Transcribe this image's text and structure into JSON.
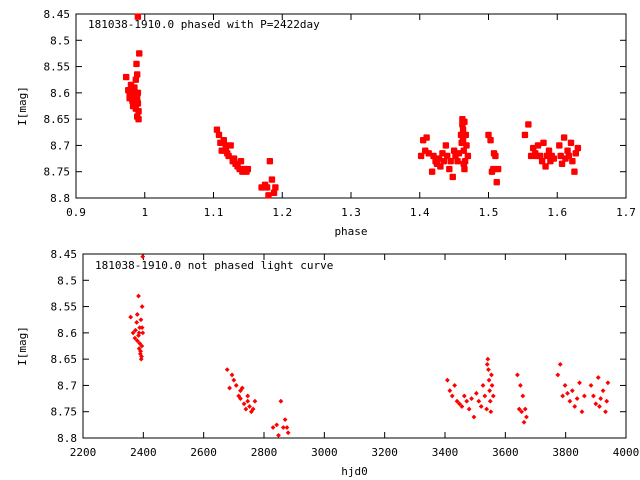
{
  "chart_data": [
    {
      "type": "scatter",
      "title": "181038-1910.0 phased with P=2422day",
      "xlabel": "phase",
      "ylabel": "I[mag]",
      "xlim": [
        0.9,
        1.7
      ],
      "ylim": [
        8.45,
        8.8
      ],
      "y_inverted": true,
      "x_ticks": [
        "0.9",
        "1",
        "1.1",
        "1.2",
        "1.3",
        "1.4",
        "1.5",
        "1.6",
        "1.7"
      ],
      "y_ticks": [
        "8.45",
        "8.5",
        "8.55",
        "8.6",
        "8.65",
        "8.7",
        "8.75",
        "8.8"
      ],
      "marker": "filled-square-large",
      "color": "#ff0000",
      "grid": false,
      "series": [
        {
          "x": [
            0.99,
            0.973,
            0.976,
            0.978,
            0.978,
            0.98,
            0.98,
            0.982,
            0.983,
            0.984,
            0.985,
            0.986,
            0.987,
            0.987,
            0.988,
            0.989,
            0.989,
            0.99,
            0.99,
            0.991,
            0.991,
            0.992,
            0.985,
            0.982,
            0.989,
            1.105,
            1.108,
            1.11,
            1.112,
            1.115,
            1.118,
            1.12,
            1.122,
            1.125,
            1.128,
            1.13,
            1.132,
            1.135,
            1.138,
            1.14,
            1.142,
            1.145,
            1.148,
            1.15,
            1.118,
            1.17,
            1.175,
            1.178,
            1.18,
            1.182,
            1.185,
            1.19,
            1.188,
            1.402,
            1.405,
            1.408,
            1.41,
            1.413,
            1.418,
            1.42,
            1.423,
            1.425,
            1.428,
            1.43,
            1.433,
            1.435,
            1.438,
            1.44,
            1.443,
            1.445,
            1.448,
            1.45,
            1.452,
            1.455,
            1.457,
            1.46,
            1.461,
            1.462,
            1.462,
            1.463,
            1.463,
            1.464,
            1.464,
            1.465,
            1.465,
            1.466,
            1.467,
            1.468,
            1.47,
            1.5,
            1.503,
            1.505,
            1.507,
            1.508,
            1.51,
            1.512,
            1.514,
            1.553,
            1.558,
            1.562,
            1.565,
            1.568,
            1.57,
            1.572,
            1.575,
            1.578,
            1.58,
            1.583,
            1.585,
            1.588,
            1.59,
            1.592,
            1.595,
            1.603,
            1.605,
            1.607,
            1.61,
            1.612,
            1.615,
            1.617,
            1.62,
            1.622,
            1.625,
            1.627,
            1.63
          ],
          "y": [
            8.455,
            8.57,
            8.595,
            8.61,
            8.6,
            8.585,
            8.6,
            8.615,
            8.625,
            8.595,
            8.605,
            8.62,
            8.63,
            8.575,
            8.545,
            8.565,
            8.645,
            8.62,
            8.6,
            8.635,
            8.65,
            8.525,
            8.59,
            8.605,
            8.61,
            8.67,
            8.68,
            8.695,
            8.71,
            8.69,
            8.7,
            8.715,
            8.72,
            8.7,
            8.73,
            8.725,
            8.735,
            8.74,
            8.745,
            8.73,
            8.75,
            8.745,
            8.75,
            8.745,
            8.705,
            8.78,
            8.775,
            8.78,
            8.795,
            8.73,
            8.765,
            8.78,
            8.79,
            8.72,
            8.69,
            8.71,
            8.685,
            8.715,
            8.75,
            8.72,
            8.73,
            8.735,
            8.725,
            8.74,
            8.715,
            8.73,
            8.7,
            8.72,
            8.745,
            8.73,
            8.76,
            8.71,
            8.72,
            8.73,
            8.715,
            8.68,
            8.695,
            8.65,
            8.66,
            8.67,
            8.69,
            8.71,
            8.735,
            8.655,
            8.745,
            8.73,
            8.68,
            8.7,
            8.72,
            8.68,
            8.69,
            8.75,
            8.745,
            8.715,
            8.72,
            8.77,
            8.745,
            8.68,
            8.66,
            8.72,
            8.705,
            8.715,
            8.72,
            8.7,
            8.72,
            8.73,
            8.695,
            8.74,
            8.72,
            8.71,
            8.73,
            8.72,
            8.725,
            8.7,
            8.72,
            8.735,
            8.685,
            8.725,
            8.71,
            8.72,
            8.695,
            8.73,
            8.75,
            8.715,
            8.705
          ]
        }
      ]
    },
    {
      "type": "scatter",
      "title": "181038-1910.0 not phased light curve",
      "xlabel": "hjd0",
      "ylabel": "I[mag]",
      "xlim": [
        2200,
        4000
      ],
      "ylim": [
        8.45,
        8.8
      ],
      "y_inverted": true,
      "x_ticks": [
        "2200",
        "2400",
        "2600",
        "2800",
        "3000",
        "3200",
        "3400",
        "3600",
        "3800",
        "4000"
      ],
      "y_ticks": [
        "8.45",
        "8.5",
        "8.55",
        "8.6",
        "8.65",
        "8.7",
        "8.75",
        "8.8"
      ],
      "marker": "diamond-small",
      "color": "#ff0000",
      "grid": false,
      "series": [
        {
          "x": [
            2398,
            2358,
            2366,
            2372,
            2374,
            2378,
            2380,
            2384,
            2386,
            2388,
            2391,
            2393,
            2396,
            2396,
            2380,
            2390,
            2395,
            2384,
            2392,
            2388,
            2398,
            2386,
            2394,
            2678,
            2686,
            2694,
            2700,
            2708,
            2716,
            2722,
            2728,
            2734,
            2740,
            2746,
            2752,
            2758,
            2764,
            2770,
            2722,
            2746,
            2830,
            2842,
            2848,
            2856,
            2864,
            2870,
            2880,
            2876,
            3408,
            3416,
            3424,
            3432,
            3440,
            3448,
            3456,
            3464,
            3472,
            3480,
            3488,
            3496,
            3504,
            3512,
            3520,
            3526,
            3532,
            3538,
            3540,
            3542,
            3544,
            3546,
            3548,
            3550,
            3552,
            3554,
            3556,
            3560,
            3640,
            3646,
            3650,
            3654,
            3658,
            3662,
            3666,
            3670,
            3774,
            3782,
            3790,
            3798,
            3806,
            3814,
            3822,
            3830,
            3838,
            3846,
            3854,
            3862,
            3884,
            3892,
            3900,
            3908,
            3916,
            3924,
            3932,
            3940,
            3936,
            3912
          ],
          "y": [
            8.455,
            8.57,
            8.6,
            8.61,
            8.595,
            8.58,
            8.565,
            8.53,
            8.6,
            8.62,
            8.635,
            8.65,
            8.59,
            8.55,
            8.615,
            8.64,
            8.625,
            8.605,
            8.575,
            8.59,
            8.6,
            8.63,
            8.645,
            8.67,
            8.705,
            8.68,
            8.69,
            8.7,
            8.72,
            8.725,
            8.705,
            8.735,
            8.745,
            8.73,
            8.74,
            8.75,
            8.745,
            8.73,
            8.71,
            8.72,
            8.78,
            8.775,
            8.795,
            8.73,
            8.78,
            8.765,
            8.79,
            8.78,
            8.69,
            8.71,
            8.72,
            8.7,
            8.73,
            8.735,
            8.74,
            8.72,
            8.73,
            8.745,
            8.725,
            8.76,
            8.715,
            8.73,
            8.74,
            8.7,
            8.72,
            8.745,
            8.66,
            8.65,
            8.67,
            8.69,
            8.71,
            8.73,
            8.75,
            8.68,
            8.7,
            8.72,
            8.68,
            8.745,
            8.7,
            8.75,
            8.72,
            8.77,
            8.745,
            8.76,
            8.68,
            8.66,
            8.72,
            8.7,
            8.715,
            8.73,
            8.71,
            8.74,
            8.725,
            8.695,
            8.75,
            8.72,
            8.7,
            8.72,
            8.735,
            8.685,
            8.725,
            8.71,
            8.75,
            8.695,
            8.73,
            8.74
          ]
        }
      ]
    }
  ]
}
